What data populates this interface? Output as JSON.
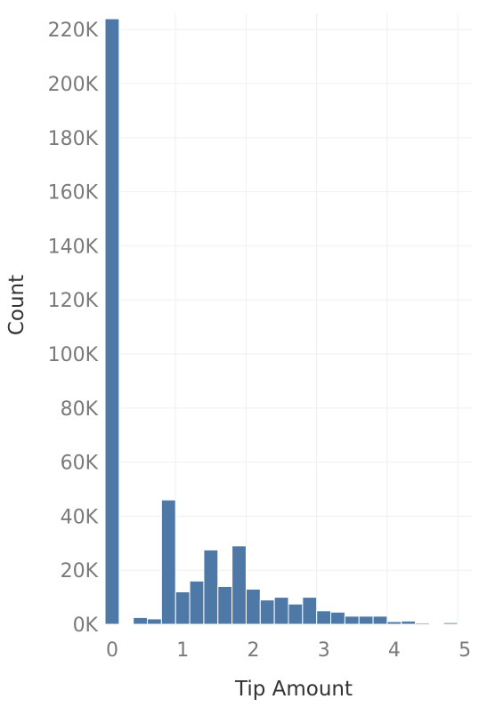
{
  "chart_data": {
    "type": "bar",
    "title": "",
    "xlabel": "Tip Amount",
    "ylabel": "Count",
    "bin_width": 0.2,
    "bins": [
      {
        "x": 0.0,
        "count": 224000
      },
      {
        "x": 0.2,
        "count": 0
      },
      {
        "x": 0.4,
        "count": 2500
      },
      {
        "x": 0.6,
        "count": 2000
      },
      {
        "x": 0.8,
        "count": 46000
      },
      {
        "x": 1.0,
        "count": 12000
      },
      {
        "x": 1.2,
        "count": 16000
      },
      {
        "x": 1.4,
        "count": 27500
      },
      {
        "x": 1.6,
        "count": 14000
      },
      {
        "x": 1.8,
        "count": 29000
      },
      {
        "x": 2.0,
        "count": 13000
      },
      {
        "x": 2.2,
        "count": 9000
      },
      {
        "x": 2.4,
        "count": 10000
      },
      {
        "x": 2.6,
        "count": 7500
      },
      {
        "x": 2.8,
        "count": 10000
      },
      {
        "x": 3.0,
        "count": 5000
      },
      {
        "x": 3.2,
        "count": 4500
      },
      {
        "x": 3.4,
        "count": 3000
      },
      {
        "x": 3.6,
        "count": 3000
      },
      {
        "x": 3.8,
        "count": 3000
      },
      {
        "x": 4.0,
        "count": 1000
      },
      {
        "x": 4.2,
        "count": 1200
      },
      {
        "x": 4.4,
        "count": 500
      },
      {
        "x": 4.6,
        "count": 200
      },
      {
        "x": 4.8,
        "count": 600
      },
      {
        "x": 5.0,
        "count": 100
      }
    ],
    "xlim": [
      0,
      5.2
    ],
    "ylim": [
      0,
      226000
    ],
    "xticks": [
      0,
      1,
      2,
      3,
      4,
      5
    ],
    "xtick_labels": [
      "0",
      "1",
      "2",
      "3",
      "4",
      "5"
    ],
    "yticks": [
      0,
      20000,
      40000,
      60000,
      80000,
      100000,
      120000,
      140000,
      160000,
      180000,
      200000,
      220000
    ],
    "ytick_labels": [
      "0K",
      "20K",
      "40K",
      "60K",
      "80K",
      "100K",
      "120K",
      "140K",
      "160K",
      "180K",
      "200K",
      "220K"
    ],
    "grid": true,
    "colors": {
      "bar": "#4e79a7",
      "bar_edge": "#ffffff",
      "grid": "#efefef",
      "tick_text": "#7a7a7a",
      "label_text": "#333333"
    }
  }
}
